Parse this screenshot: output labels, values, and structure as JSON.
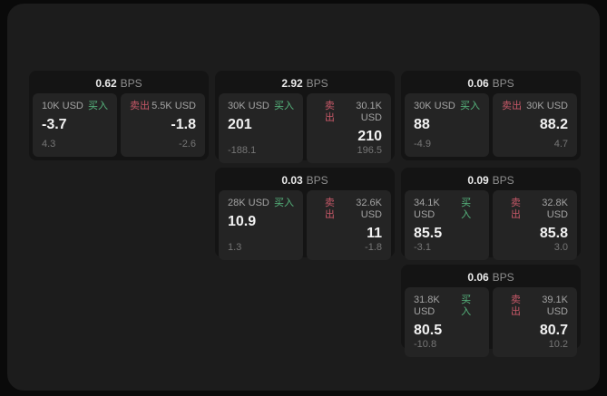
{
  "labels": {
    "bps_unit": "BPS",
    "buy": "买入",
    "sell": "卖出"
  },
  "colors": {
    "buy_green": "#57b87f",
    "sell_red": "#c75868",
    "panel_bg": "#1c1c1c",
    "card_bg": "#141414",
    "subcard_bg": "#242424"
  },
  "cards": [
    {
      "bps_value": "0.62",
      "buy": {
        "amount": "10K USD",
        "price": "-3.7",
        "change": "4.3"
      },
      "sell": {
        "amount": "5.5K USD",
        "price": "-1.8",
        "change": "-2.6"
      }
    },
    {
      "bps_value": "2.92",
      "buy": {
        "amount": "30K USD",
        "price": "201",
        "change": "-188.1"
      },
      "sell": {
        "amount": "30.1K USD",
        "price": "210",
        "change": "196.5"
      }
    },
    {
      "bps_value": "0.06",
      "buy": {
        "amount": "30K USD",
        "price": "88",
        "change": "-4.9"
      },
      "sell": {
        "amount": "30K USD",
        "price": "88.2",
        "change": "4.7"
      }
    },
    {
      "bps_value": "0.03",
      "buy": {
        "amount": "28K USD",
        "price": "10.9",
        "change": "1.3"
      },
      "sell": {
        "amount": "32.6K USD",
        "price": "11",
        "change": "-1.8"
      }
    },
    {
      "bps_value": "0.09",
      "buy": {
        "amount": "34.1K USD",
        "price": "85.5",
        "change": "-3.1"
      },
      "sell": {
        "amount": "32.8K USD",
        "price": "85.8",
        "change": "3.0"
      }
    },
    {
      "bps_value": "0.06",
      "buy": {
        "amount": "31.8K USD",
        "price": "80.5",
        "change": "-10.8"
      },
      "sell": {
        "amount": "39.1K USD",
        "price": "80.7",
        "change": "10.2"
      }
    }
  ]
}
